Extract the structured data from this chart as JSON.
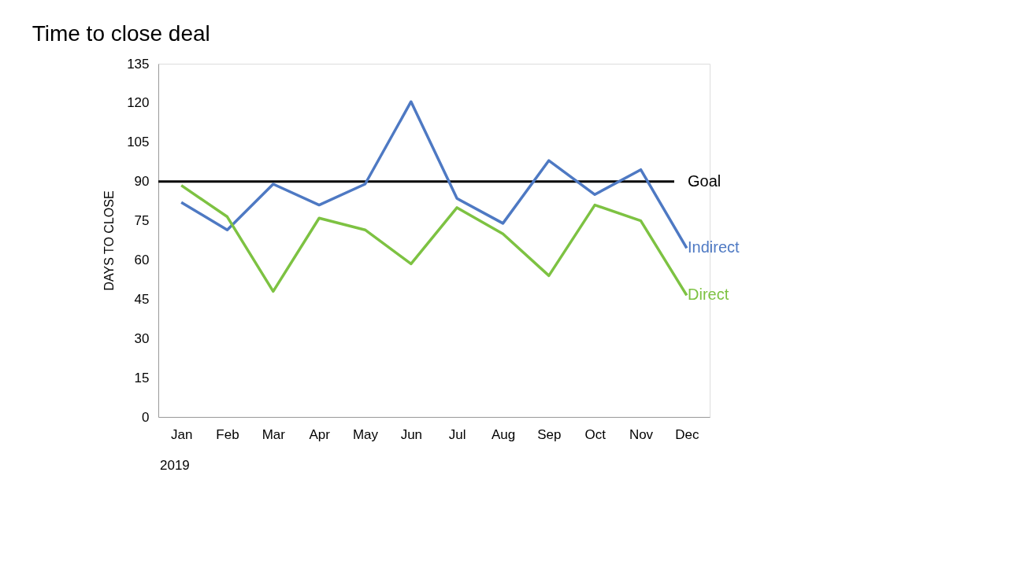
{
  "chart_data": {
    "type": "line",
    "title": "Time to close deal",
    "ylabel": "DAYS TO CLOSE",
    "categories": [
      "Jan",
      "Feb",
      "Mar",
      "Apr",
      "May",
      "Jun",
      "Jul",
      "Aug",
      "Sep",
      "Oct",
      "Nov",
      "Dec"
    ],
    "series": [
      {
        "name": "Indirect",
        "color": "#4e79c3",
        "values": [
          82,
          71.5,
          89,
          81,
          89,
          120.5,
          83.5,
          74,
          98,
          85,
          94.5,
          64.5
        ]
      },
      {
        "name": "Direct",
        "color": "#7dc242",
        "values": [
          88.5,
          76.5,
          48,
          76,
          71.5,
          58.5,
          80,
          70,
          54,
          81,
          75,
          46.5
        ]
      }
    ],
    "ref_lines": [
      {
        "axis": "y",
        "value": 90,
        "label": "Goal",
        "color": "#000000"
      }
    ],
    "annotations": [
      "2019"
    ],
    "ylim": [
      0,
      135
    ],
    "yticks": [
      0,
      15,
      30,
      45,
      60,
      75,
      90,
      105,
      120,
      135
    ],
    "grid": false,
    "marker": "none",
    "line_style": "solid"
  }
}
